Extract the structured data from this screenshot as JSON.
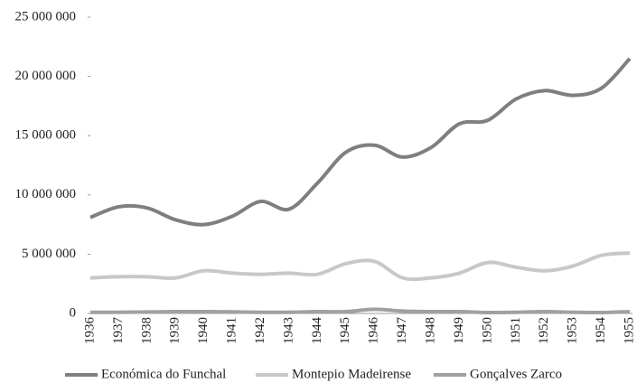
{
  "chart_data": {
    "type": "line",
    "categories": [
      "1936",
      "1937",
      "1938",
      "1939",
      "1940",
      "1941",
      "1942",
      "1943",
      "1944",
      "1945",
      "1946",
      "1947",
      "1948",
      "1949",
      "1950",
      "1951",
      "1952",
      "1953",
      "1954",
      "1955"
    ],
    "series": [
      {
        "name": "Económica do Funchal",
        "color": "#7f7f7f",
        "values": [
          8100000,
          9000000,
          8900000,
          7900000,
          7500000,
          8200000,
          9450000,
          8800000,
          11000000,
          13600000,
          14200000,
          13200000,
          14000000,
          16000000,
          16300000,
          18100000,
          18800000,
          18400000,
          19000000,
          21500000
        ]
      },
      {
        "name": "Montepio Madeirense",
        "color": "#c8c8c8",
        "values": [
          3000000,
          3100000,
          3100000,
          3000000,
          3600000,
          3400000,
          3300000,
          3400000,
          3300000,
          4200000,
          4400000,
          3000000,
          3000000,
          3400000,
          4300000,
          3900000,
          3600000,
          4000000,
          4900000,
          5100000
        ]
      },
      {
        "name": "Gonçalves Zarco",
        "color": "#a0a0a0",
        "values": [
          100000,
          100000,
          120000,
          150000,
          150000,
          130000,
          100000,
          100000,
          150000,
          150000,
          350000,
          200000,
          150000,
          150000,
          80000,
          100000,
          150000,
          100000,
          80000,
          150000
        ]
      }
    ],
    "ylim": [
      0,
      25000000
    ],
    "yticks": [
      0,
      {
        "value": 5000000,
        "label": "5 000 000"
      },
      {
        "value": 10000000,
        "label": "10 000 000"
      },
      {
        "value": 15000000,
        "label": "15 000 000"
      },
      {
        "value": 20000000,
        "label": "20 000 000"
      },
      {
        "value": 25000000,
        "label": "25 000 000"
      }
    ],
    "legend": "bottom"
  }
}
